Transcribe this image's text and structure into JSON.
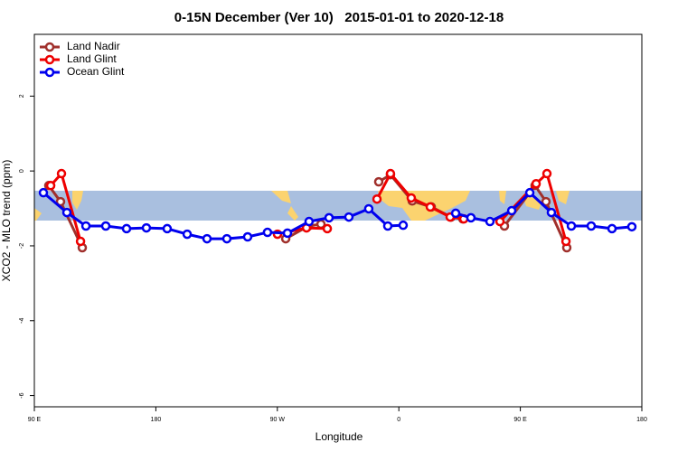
{
  "chart_data": {
    "type": "line",
    "title": "0-15N December (Ver 10)   2015-01-01 to 2020-12-18",
    "xlabel": "Longitude",
    "ylabel": "XCO2 - MLO trend (ppm)",
    "xlim": [
      90,
      540
    ],
    "ylim": [
      -6.3,
      3.65
    ],
    "xticks": [
      {
        "value": 90,
        "label": "90 E"
      },
      180,
      {
        "value": 270,
        "label": "90 W"
      },
      {
        "value": 360,
        "label": "0"
      },
      {
        "value": 450,
        "label": "90 E"
      },
      {
        "value": 540,
        "label": "180"
      }
    ],
    "yticks": [
      2,
      0,
      -2,
      -4,
      -6
    ],
    "legend": "top-left",
    "series": [
      {
        "name": "Land Nadir",
        "color": "#a0302c",
        "x": [
          100.7,
          109.4,
          125.5,
          null,
          276.2,
          293.0,
          302.3,
          null,
          345.1,
          353.8,
          369.9,
          384.0,
          398.7,
          407.4,
          null,
          438.2,
          460.9,
          469.0,
          484.4
        ],
        "values": [
          -0.39,
          -0.82,
          -2.05,
          null,
          -1.81,
          -1.47,
          -1.42,
          null,
          -0.29,
          -0.1,
          -0.8,
          -0.96,
          -1.23,
          -1.28,
          null,
          -1.47,
          -0.39,
          -0.82,
          -2.05
        ]
      },
      {
        "name": "Land Glint",
        "color": "#ee0000",
        "x": [
          102.1,
          110.1,
          124.2,
          null,
          270.1,
          291.6,
          307.0,
          null,
          343.8,
          353.8,
          369.2,
          383.3,
          398.0,
          408.1,
          null,
          434.9,
          461.7,
          469.7,
          483.8
        ],
        "values": [
          -0.39,
          -0.07,
          -1.88,
          null,
          -1.69,
          -1.52,
          -1.54,
          null,
          -0.75,
          -0.07,
          -0.72,
          -0.96,
          -1.23,
          -1.28,
          null,
          -1.35,
          -0.34,
          -0.07,
          -1.88
        ]
      },
      {
        "name": "Ocean Glint",
        "color": "#0000ee",
        "x": [
          96.7,
          114.1,
          128.2,
          142.9,
          158.3,
          173.0,
          188.4,
          203.2,
          217.9,
          232.6,
          248.0,
          262.7,
          277.5,
          293.5,
          308.3,
          323.0,
          337.7,
          351.8,
          363.2,
          null,
          402.1,
          413.4,
          427.5,
          443.6,
          457.0,
          473.0,
          487.8,
          502.5,
          517.9,
          532.6
        ],
        "values": [
          -0.58,
          -1.11,
          -1.47,
          -1.47,
          -1.54,
          -1.52,
          -1.54,
          -1.69,
          -1.81,
          -1.81,
          -1.76,
          -1.64,
          -1.66,
          -1.35,
          -1.25,
          -1.23,
          -1.01,
          -1.47,
          -1.45,
          null,
          -1.13,
          -1.25,
          -1.35,
          -1.06,
          -0.58,
          -1.11,
          -1.47,
          -1.47,
          -1.54,
          -1.49
        ]
      }
    ]
  }
}
